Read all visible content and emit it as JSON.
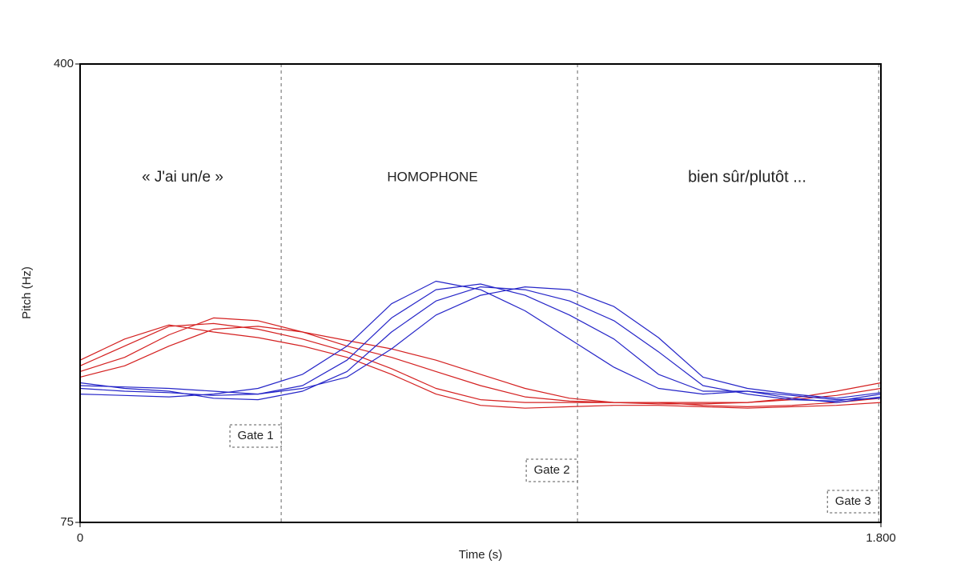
{
  "chart_data": {
    "type": "line",
    "y_label": "Pitch (Hz)",
    "x_label": "Time (s)",
    "xlim": [
      0,
      1.8
    ],
    "ylim": [
      75,
      400
    ],
    "xticks": [
      0,
      {
        "value": 1.8,
        "label": "1.800"
      }
    ],
    "yticks": [
      75,
      400
    ],
    "annotations": [
      "« J'ai un/e »",
      "HOMOPHONE",
      "bien sûr/plutôt ..."
    ],
    "gates": [
      {
        "label": "Gate 1",
        "x": 0.452
      },
      {
        "label": "Gate 2",
        "x": 1.118
      },
      {
        "label": "Gate 3",
        "x": 1.795
      }
    ],
    "x": [
      0,
      0.1,
      0.2,
      0.3,
      0.4,
      0.5,
      0.6,
      0.7,
      0.8,
      0.9,
      1.0,
      1.1,
      1.2,
      1.3,
      1.4,
      1.5,
      1.6,
      1.7,
      1.8
    ],
    "series": [
      {
        "color": "#d42020",
        "values": [
          186,
          200,
          214,
          216,
          212,
          205,
          196,
          184,
          170,
          162,
          160,
          160,
          160,
          159,
          159,
          160,
          162,
          165,
          170
        ]
      },
      {
        "color": "#d42020",
        "values": [
          182,
          192,
          208,
          220,
          218,
          210,
          200,
          192,
          182,
          172,
          164,
          161,
          160,
          160,
          158,
          157,
          158,
          160,
          163
        ]
      },
      {
        "color": "#d42020",
        "values": [
          190,
          205,
          215,
          210,
          206,
          200,
          192,
          180,
          166,
          158,
          156,
          157,
          158,
          158,
          157,
          156,
          157,
          158,
          160
        ]
      },
      {
        "color": "#d42020",
        "values": [
          178,
          186,
          200,
          212,
          214,
          210,
          204,
          198,
          190,
          180,
          170,
          163,
          160,
          160,
          160,
          160,
          163,
          168,
          174
        ]
      },
      {
        "color": "#2525c8",
        "values": [
          170,
          168,
          167,
          165,
          166,
          172,
          190,
          220,
          240,
          244,
          236,
          222,
          205,
          180,
          168,
          168,
          163,
          160,
          164
        ]
      },
      {
        "color": "#2525c8",
        "values": [
          174,
          170,
          168,
          163,
          162,
          168,
          182,
          210,
          232,
          242,
          240,
          232,
          218,
          196,
          172,
          166,
          162,
          161,
          166
        ]
      },
      {
        "color": "#2525c8",
        "values": [
          166,
          165,
          164,
          166,
          170,
          180,
          200,
          230,
          246,
          240,
          225,
          205,
          185,
          170,
          166,
          168,
          165,
          162,
          163
        ]
      },
      {
        "color": "#2525c8",
        "values": [
          172,
          171,
          170,
          168,
          166,
          170,
          178,
          198,
          222,
          236,
          242,
          240,
          228,
          206,
          178,
          170,
          166,
          163,
          167
        ]
      }
    ]
  }
}
